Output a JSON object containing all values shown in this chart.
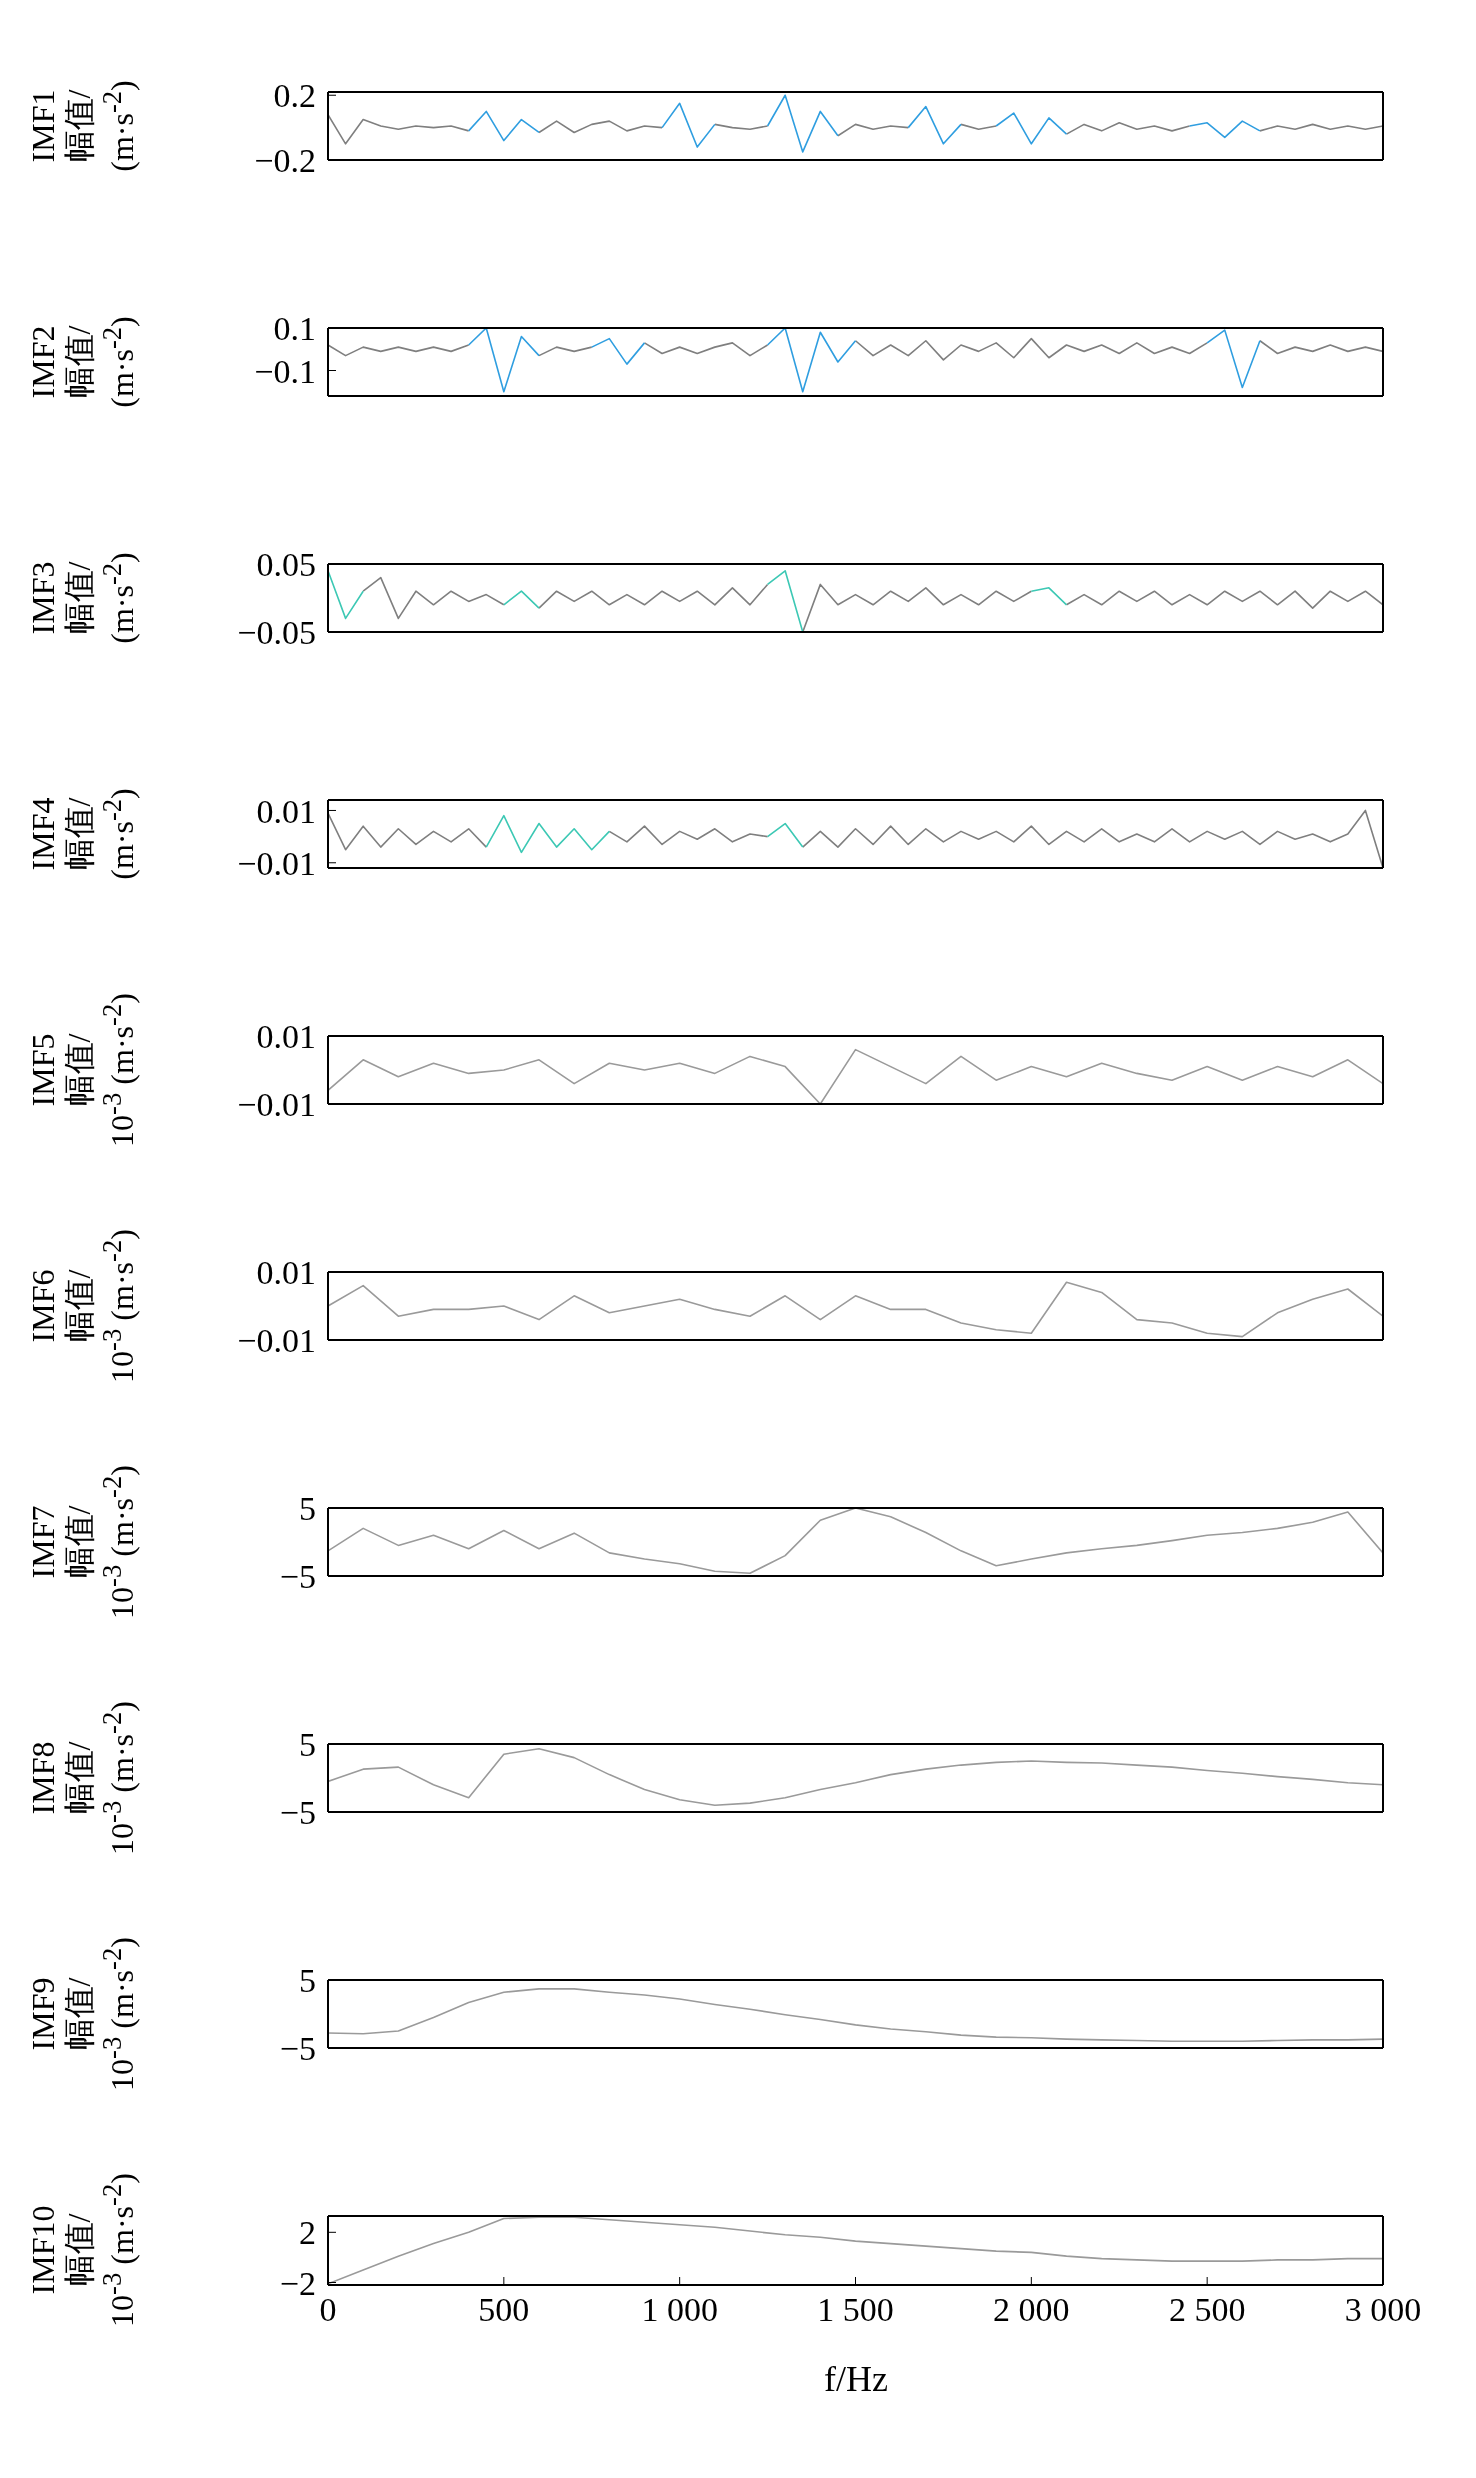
{
  "chart_data": [
    {
      "type": "line",
      "ylabel": "IMF1\n幅值/\n(m·s$^{-2}$)",
      "xlim": [
        0,
        3000
      ],
      "xticks": [
        0,
        500,
        1000,
        1500,
        2000,
        2500,
        3000
      ],
      "ylim": [
        -0.2,
        0.22
      ],
      "yticks": [
        {
          "value": -0.2,
          "label": "−0.2"
        },
        0.2
      ],
      "tick_labels": "y",
      "x": [
        0,
        50,
        100,
        150,
        200,
        250,
        300,
        350,
        400,
        450,
        500,
        550,
        600,
        650,
        700,
        750,
        800,
        850,
        900,
        950,
        1000,
        1050,
        1100,
        1150,
        1200,
        1250,
        1300,
        1350,
        1400,
        1450,
        1500,
        1550,
        1600,
        1650,
        1700,
        1750,
        1800,
        1850,
        1900,
        1950,
        2000,
        2050,
        2100,
        2150,
        2200,
        2250,
        2300,
        2350,
        2400,
        2450,
        2500,
        2550,
        2600,
        2650,
        2700,
        2750,
        2800,
        2850,
        2900,
        2950,
        3000
      ],
      "series": [
        {
          "color": "#7f7f7f",
          "values": [
            0.08,
            -0.1,
            0.05,
            0.01,
            -0.01,
            0.01,
            0,
            0.01,
            -0.02,
            null,
            null,
            null,
            -0.03,
            0.04,
            -0.03,
            0.02,
            0.04,
            -0.02,
            0.01,
            0,
            null,
            null,
            0.02,
            0,
            -0.01,
            0.01,
            null,
            null,
            null,
            -0.05,
            0.02,
            -0.01,
            0.01,
            0,
            null,
            null,
            0.02,
            -0.01,
            0.01,
            null,
            null,
            null,
            -0.04,
            0.02,
            -0.02,
            0.03,
            -0.01,
            0.01,
            -0.02,
            0.01,
            null,
            null,
            null,
            -0.02,
            0.01,
            -0.01,
            0.02,
            -0.01,
            0.01,
            -0.01,
            0.01
          ]
        },
        {
          "color": "#2f9ee0",
          "values": [
            null,
            null,
            null,
            null,
            null,
            null,
            null,
            null,
            -0.02,
            0.1,
            -0.08,
            0.05,
            -0.03,
            null,
            null,
            null,
            null,
            null,
            null,
            0,
            0.15,
            -0.12,
            0.02,
            null,
            null,
            0.01,
            0.2,
            -0.15,
            0.1,
            -0.05,
            null,
            null,
            null,
            0,
            0.13,
            -0.1,
            0.02,
            null,
            0.01,
            0.09,
            -0.1,
            0.06,
            -0.04,
            null,
            null,
            null,
            null,
            null,
            null,
            0.01,
            0.03,
            -0.06,
            0.04,
            -0.02,
            null,
            null,
            null,
            null,
            null,
            null,
            null
          ]
        }
      ]
    },
    {
      "type": "line",
      "ylabel": "IMF2\n幅值/\n(m·s$^{-2}$)",
      "xlim": [
        0,
        3000
      ],
      "xticks": [
        0,
        500,
        1000,
        1500,
        2000,
        2500,
        3000
      ],
      "ylim": [
        -0.22,
        0.1
      ],
      "yticks": [
        {
          "value": -0.1,
          "label": "−0.1"
        },
        0.1
      ],
      "tick_labels": "y",
      "x": [
        0,
        50,
        100,
        150,
        200,
        250,
        300,
        350,
        400,
        450,
        500,
        550,
        600,
        650,
        700,
        750,
        800,
        850,
        900,
        950,
        1000,
        1050,
        1100,
        1150,
        1200,
        1250,
        1300,
        1350,
        1400,
        1450,
        1500,
        1550,
        1600,
        1650,
        1700,
        1750,
        1800,
        1850,
        1900,
        1950,
        2000,
        2050,
        2100,
        2150,
        2200,
        2250,
        2300,
        2350,
        2400,
        2450,
        2500,
        2550,
        2600,
        2650,
        2700,
        2750,
        2800,
        2850,
        2900,
        2950,
        3000
      ],
      "series": [
        {
          "color": "#7f7f7f",
          "values": [
            0.02,
            -0.03,
            0.01,
            -0.01,
            0.01,
            -0.01,
            0.01,
            -0.01,
            0.02,
            null,
            null,
            null,
            -0.03,
            0.01,
            -0.01,
            0.01,
            null,
            null,
            0.03,
            -0.02,
            0.01,
            -0.02,
            0.01,
            0.03,
            -0.03,
            0.02,
            null,
            null,
            null,
            null,
            0.04,
            -0.03,
            0.02,
            -0.03,
            0.04,
            -0.05,
            0.02,
            -0.01,
            0.03,
            -0.04,
            0.05,
            -0.04,
            0.02,
            -0.01,
            0.02,
            -0.02,
            0.03,
            -0.02,
            0.01,
            -0.02,
            0.03,
            null,
            null,
            0.04,
            -0.02,
            0.01,
            -0.01,
            0.02,
            -0.01,
            0.01,
            -0.01
          ]
        },
        {
          "color": "#2f9ee0",
          "values": [
            null,
            null,
            null,
            null,
            null,
            null,
            null,
            null,
            0.02,
            0.1,
            -0.2,
            0.06,
            -0.03,
            null,
            null,
            0.01,
            0.05,
            -0.07,
            0.03,
            null,
            null,
            null,
            null,
            null,
            null,
            0.02,
            0.1,
            -0.2,
            0.08,
            -0.06,
            0.04,
            null,
            null,
            null,
            null,
            null,
            null,
            null,
            null,
            null,
            null,
            null,
            null,
            null,
            null,
            null,
            null,
            null,
            null,
            null,
            0.03,
            0.09,
            -0.18,
            0.04,
            null,
            null,
            null,
            null,
            null,
            null,
            null
          ]
        }
      ]
    },
    {
      "type": "line",
      "ylabel": "IMF3\n幅值/\n(m·s$^{-2}$)",
      "xlim": [
        0,
        3000
      ],
      "xticks": [
        0,
        500,
        1000,
        1500,
        2000,
        2500,
        3000
      ],
      "ylim": [
        -0.05,
        0.05
      ],
      "yticks": [
        {
          "value": -0.05,
          "label": "−0.05"
        },
        0.05
      ],
      "tick_labels": "y",
      "x": [
        0,
        50,
        100,
        150,
        200,
        250,
        300,
        350,
        400,
        450,
        500,
        550,
        600,
        650,
        700,
        750,
        800,
        850,
        900,
        950,
        1000,
        1050,
        1100,
        1150,
        1200,
        1250,
        1300,
        1350,
        1400,
        1450,
        1500,
        1550,
        1600,
        1650,
        1700,
        1750,
        1800,
        1850,
        1900,
        1950,
        2000,
        2050,
        2100,
        2150,
        2200,
        2250,
        2300,
        2350,
        2400,
        2450,
        2500,
        2550,
        2600,
        2650,
        2700,
        2750,
        2800,
        2850,
        2900,
        2950,
        3000
      ],
      "series": [
        {
          "color": "#7f7f7f",
          "values": [
            null,
            null,
            0.01,
            0.03,
            -0.03,
            0.01,
            -0.01,
            0.01,
            -0.005,
            0.005,
            -0.01,
            null,
            -0.015,
            0.01,
            -0.005,
            0.01,
            -0.01,
            0.005,
            -0.01,
            0.01,
            -0.005,
            0.01,
            -0.01,
            0.015,
            -0.01,
            0.02,
            null,
            -0.05,
            0.02,
            -0.01,
            0.005,
            -0.01,
            0.01,
            -0.005,
            0.015,
            -0.01,
            0.005,
            -0.01,
            0.01,
            -0.005,
            0.01,
            null,
            -0.01,
            0.005,
            -0.01,
            0.01,
            -0.005,
            0.01,
            -0.01,
            0.005,
            -0.01,
            0.01,
            -0.005,
            0.01,
            -0.01,
            0.01,
            -0.015,
            0.01,
            -0.005,
            0.01,
            -0.01
          ]
        },
        {
          "color": "#3cc8b4",
          "values": [
            0.04,
            -0.03,
            0.01,
            null,
            null,
            null,
            null,
            null,
            null,
            null,
            -0.01,
            0.01,
            -0.015,
            null,
            null,
            null,
            null,
            null,
            null,
            null,
            null,
            null,
            null,
            null,
            null,
            0.02,
            0.04,
            -0.05,
            null,
            null,
            null,
            null,
            null,
            null,
            null,
            null,
            null,
            null,
            null,
            null,
            0.01,
            0.015,
            -0.01,
            null,
            null,
            null,
            null,
            null,
            null,
            null,
            null,
            null,
            null,
            null,
            null,
            null,
            null,
            null,
            null,
            null,
            null
          ]
        }
      ]
    },
    {
      "type": "line",
      "ylabel": "IMF4\n幅值/\n(m·s$^{-2}$)",
      "xlim": [
        0,
        3000
      ],
      "xticks": [
        0,
        500,
        1000,
        1500,
        2000,
        2500,
        3000
      ],
      "ylim": [
        -0.012,
        0.014
      ],
      "yticks": [
        {
          "value": -0.01,
          "label": "−0.01"
        },
        0.01
      ],
      "tick_labels": "y",
      "x": [
        0,
        50,
        100,
        150,
        200,
        250,
        300,
        350,
        400,
        450,
        500,
        550,
        600,
        650,
        700,
        750,
        800,
        850,
        900,
        950,
        1000,
        1050,
        1100,
        1150,
        1200,
        1250,
        1300,
        1350,
        1400,
        1450,
        1500,
        1550,
        1600,
        1650,
        1700,
        1750,
        1800,
        1850,
        1900,
        1950,
        2000,
        2050,
        2100,
        2150,
        2200,
        2250,
        2300,
        2350,
        2400,
        2450,
        2500,
        2550,
        2600,
        2650,
        2700,
        2750,
        2800,
        2850,
        2900,
        2950,
        3000
      ],
      "series": [
        {
          "color": "#7f7f7f",
          "values": [
            0.009,
            -0.005,
            0.004,
            -0.004,
            0.003,
            -0.003,
            0.002,
            -0.002,
            0.003,
            -0.004,
            null,
            null,
            null,
            null,
            null,
            null,
            0.002,
            -0.002,
            0.004,
            -0.003,
            0.002,
            -0.001,
            0.003,
            -0.002,
            0.001,
            0,
            null,
            -0.004,
            0.002,
            -0.004,
            0.003,
            -0.003,
            0.004,
            -0.003,
            0.003,
            -0.002,
            0.002,
            -0.001,
            0.002,
            -0.002,
            0.004,
            -0.003,
            0.002,
            -0.002,
            0.003,
            -0.002,
            0.001,
            -0.002,
            0.003,
            -0.002,
            0.002,
            -0.001,
            0.002,
            -0.003,
            0.002,
            -0.001,
            0.001,
            -0.002,
            0.001,
            0.01,
            -0.012
          ]
        },
        {
          "color": "#3cc8b4",
          "values": [
            null,
            null,
            null,
            null,
            null,
            null,
            null,
            null,
            null,
            -0.004,
            0.008,
            -0.006,
            0.005,
            -0.004,
            0.003,
            -0.005,
            0.002,
            null,
            null,
            null,
            null,
            null,
            null,
            null,
            null,
            0,
            0.005,
            -0.004,
            null,
            null,
            null,
            null,
            null,
            null,
            null,
            null,
            null,
            null,
            null,
            null,
            null,
            null,
            null,
            null,
            null,
            null,
            null,
            null,
            null,
            null,
            null,
            null,
            null,
            null,
            null,
            null,
            null,
            null,
            null,
            null,
            null
          ]
        }
      ]
    },
    {
      "type": "line",
      "ylabel": "IMF5\n幅值/\n10$^{-3}$ (m·s$^{-2}$)",
      "xlim": [
        0,
        3000
      ],
      "xticks": [
        0,
        500,
        1000,
        1500,
        2000,
        2500,
        3000
      ],
      "ylim": [
        -0.01,
        0.01
      ],
      "yticks": [
        {
          "value": -0.01,
          "label": "−0.01"
        },
        0.01
      ],
      "tick_labels": "y",
      "x": [
        0,
        100,
        200,
        300,
        400,
        500,
        600,
        700,
        800,
        900,
        1000,
        1100,
        1200,
        1300,
        1400,
        1500,
        1600,
        1700,
        1800,
        1900,
        2000,
        2100,
        2200,
        2300,
        2400,
        2500,
        2600,
        2700,
        2800,
        2900,
        3000
      ],
      "series": [
        {
          "color": "#9a9a9a",
          "values": [
            -0.006,
            0.003,
            -0.002,
            0.002,
            -0.001,
            0,
            0.003,
            -0.004,
            0.002,
            0,
            0.002,
            -0.001,
            0.004,
            0.001,
            -0.01,
            0.006,
            0.001,
            -0.004,
            0.004,
            -0.003,
            0.001,
            -0.002,
            0.002,
            -0.001,
            -0.003,
            0.001,
            -0.003,
            0.001,
            -0.002,
            0.003,
            -0.004
          ]
        }
      ]
    },
    {
      "type": "line",
      "ylabel": "IMF6\n幅值/\n10$^{-3}$ (m·s$^{-2}$)",
      "xlim": [
        0,
        3000
      ],
      "xticks": [
        0,
        500,
        1000,
        1500,
        2000,
        2500,
        3000
      ],
      "ylim": [
        -0.01,
        0.01
      ],
      "yticks": [
        {
          "value": -0.01,
          "label": "−0.01"
        },
        0.01
      ],
      "tick_labels": "y",
      "x": [
        0,
        100,
        200,
        300,
        400,
        500,
        600,
        700,
        800,
        900,
        1000,
        1100,
        1200,
        1300,
        1400,
        1500,
        1600,
        1700,
        1800,
        1900,
        2000,
        2100,
        2200,
        2300,
        2400,
        2500,
        2600,
        2700,
        2800,
        2900,
        3000
      ],
      "series": [
        {
          "color": "#9a9a9a",
          "values": [
            0,
            0.006,
            -0.003,
            -0.001,
            -0.001,
            0,
            -0.004,
            0.003,
            -0.002,
            0,
            0.002,
            -0.001,
            -0.003,
            0.003,
            -0.004,
            0.003,
            -0.001,
            -0.001,
            -0.005,
            -0.007,
            -0.008,
            0.007,
            0.004,
            -0.004,
            -0.005,
            -0.008,
            -0.009,
            -0.002,
            0.002,
            0.005,
            -0.003
          ]
        }
      ]
    },
    {
      "type": "line",
      "ylabel": "IMF7\n幅值/\n10$^{-3}$ (m·s$^{-2}$)",
      "xlim": [
        0,
        3000
      ],
      "xticks": [
        0,
        500,
        1000,
        1500,
        2000,
        2500,
        3000
      ],
      "ylim": [
        -5,
        5
      ],
      "yticks": [
        {
          "value": -5,
          "label": "−5"
        },
        5
      ],
      "tick_labels": "y",
      "x": [
        0,
        100,
        200,
        300,
        400,
        500,
        600,
        700,
        800,
        900,
        1000,
        1100,
        1200,
        1300,
        1400,
        1500,
        1600,
        1700,
        1800,
        1900,
        2000,
        2100,
        2200,
        2300,
        2400,
        2500,
        2600,
        2700,
        2800,
        2900,
        3000
      ],
      "series": [
        {
          "color": "#9a9a9a",
          "values": [
            -1.3,
            2,
            -0.5,
            1,
            -1,
            1.7,
            -1,
            1.3,
            -1.6,
            -2.5,
            -3.2,
            -4.3,
            -4.6,
            -2,
            3.2,
            5,
            3.7,
            1.4,
            -1.3,
            -3.5,
            -2.5,
            -1.6,
            -1,
            -0.5,
            0.2,
            1,
            1.4,
            2,
            2.9,
            4.4,
            -1.6
          ]
        }
      ]
    },
    {
      "type": "line",
      "ylabel": "IMF8\n幅值/\n10$^{-3}$ (m·s$^{-2}$)",
      "xlim": [
        0,
        3000
      ],
      "xticks": [
        0,
        500,
        1000,
        1500,
        2000,
        2500,
        3000
      ],
      "ylim": [
        -5,
        5
      ],
      "yticks": [
        {
          "value": -5,
          "label": "−5"
        },
        5
      ],
      "tick_labels": "y",
      "x": [
        0,
        100,
        200,
        300,
        400,
        500,
        600,
        700,
        800,
        900,
        1000,
        1100,
        1200,
        1300,
        1400,
        1500,
        1600,
        1700,
        1800,
        1900,
        2000,
        2100,
        2200,
        2300,
        2400,
        2500,
        2600,
        2700,
        2800,
        2900,
        3000
      ],
      "series": [
        {
          "color": "#9a9a9a",
          "values": [
            -0.5,
            1.3,
            1.6,
            -1,
            -2.9,
            3.5,
            4.3,
            3,
            0.5,
            -1.7,
            -3.2,
            -4,
            -3.7,
            -2.9,
            -1.7,
            -0.7,
            0.5,
            1.3,
            1.9,
            2.3,
            2.5,
            2.3,
            2.2,
            1.9,
            1.6,
            1.1,
            0.7,
            0.2,
            -0.2,
            -0.7,
            -1
          ]
        }
      ]
    },
    {
      "type": "line",
      "ylabel": "IMF9\n幅值/\n10$^{-3}$ (m·s$^{-2}$)",
      "xlim": [
        0,
        3000
      ],
      "xticks": [
        0,
        500,
        1000,
        1500,
        2000,
        2500,
        3000
      ],
      "ylim": [
        -5,
        5
      ],
      "yticks": [
        {
          "value": -5,
          "label": "−5"
        },
        5
      ],
      "tick_labels": "y",
      "x": [
        0,
        100,
        200,
        300,
        400,
        500,
        600,
        700,
        800,
        900,
        1000,
        1100,
        1200,
        1300,
        1400,
        1500,
        1600,
        1700,
        1800,
        1900,
        2000,
        2100,
        2200,
        2300,
        2400,
        2500,
        2600,
        2700,
        2800,
        2900,
        3000
      ],
      "series": [
        {
          "color": "#9a9a9a",
          "values": [
            -2.8,
            -2.9,
            -2.5,
            -0.5,
            1.7,
            3.2,
            3.7,
            3.7,
            3.2,
            2.8,
            2.2,
            1.4,
            0.7,
            -0.1,
            -0.8,
            -1.6,
            -2.2,
            -2.6,
            -3.1,
            -3.4,
            -3.5,
            -3.7,
            -3.8,
            -3.9,
            -4,
            -4,
            -4,
            -3.9,
            -3.8,
            -3.8,
            -3.7
          ]
        }
      ]
    },
    {
      "type": "line",
      "ylabel": "IMF10\n幅值/\n10$^{-3}$ (m·s$^{-2}$)",
      "xlabel": "f/Hz",
      "xlim": [
        0,
        3000
      ],
      "xticks": [
        0,
        500,
        {
          "value": 1000,
          "label": "1 000"
        },
        {
          "value": 1500,
          "label": "1 500"
        },
        {
          "value": 2000,
          "label": "2 000"
        },
        {
          "value": 2500,
          "label": "2 500"
        },
        {
          "value": 3000,
          "label": "3 000"
        }
      ],
      "ylim": [
        -2.2,
        3.3
      ],
      "yticks": [
        {
          "value": -2,
          "label": "−2"
        },
        2
      ],
      "x": [
        0,
        100,
        200,
        300,
        400,
        500,
        600,
        700,
        800,
        900,
        1000,
        1100,
        1200,
        1300,
        1400,
        1500,
        1600,
        1700,
        1800,
        1900,
        2000,
        2100,
        2200,
        2300,
        2400,
        2500,
        2600,
        2700,
        2800,
        2900,
        3000
      ],
      "series": [
        {
          "color": "#9a9a9a",
          "values": [
            -2.1,
            -1,
            0.1,
            1.1,
            2,
            3.1,
            3.2,
            3.2,
            3,
            2.8,
            2.6,
            2.4,
            2.1,
            1.8,
            1.6,
            1.3,
            1.1,
            0.9,
            0.7,
            0.5,
            0.4,
            0.1,
            -0.1,
            -0.2,
            -0.3,
            -0.3,
            -0.3,
            -0.2,
            -0.2,
            -0.1,
            -0.1
          ]
        }
      ]
    }
  ]
}
